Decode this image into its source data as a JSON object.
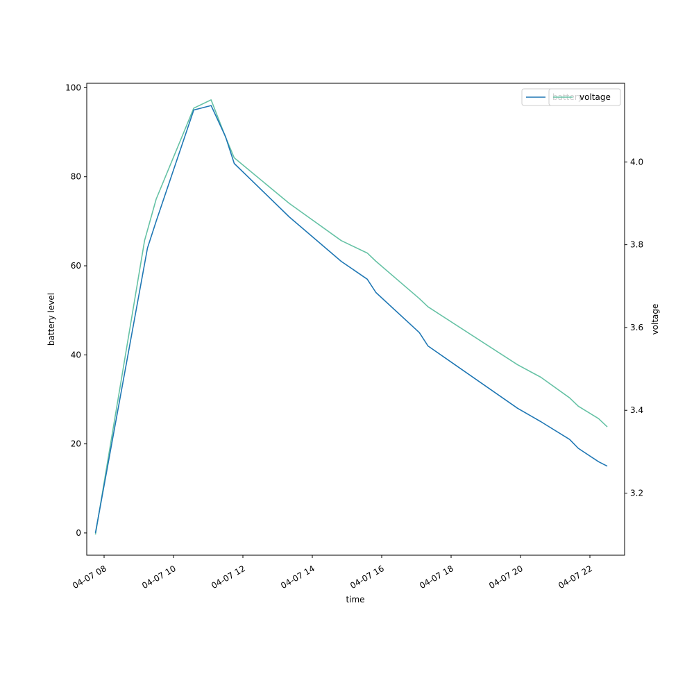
{
  "chart_data": {
    "type": "line",
    "title": "",
    "xlabel": "time",
    "ylabel_left": "battery level",
    "ylabel_right": "voltage",
    "x_ticks": [
      "04-07 08",
      "04-07 10",
      "04-07 12",
      "04-07 14",
      "04-07 16",
      "04-07 18",
      "04-07 20",
      "04-07 22"
    ],
    "xlim": [
      "04-07 07:30",
      "04-07 23:00"
    ],
    "ylim_left": [
      -5,
      101
    ],
    "yticks_left": [
      0,
      20,
      40,
      60,
      80,
      100
    ],
    "ylim_right": [
      3.05,
      4.19
    ],
    "yticks_right": [
      3.2,
      3.4,
      3.6,
      3.8,
      4.0
    ],
    "legend_placement": "top-right",
    "grid": false,
    "colors": {
      "battery": "#1f77b4",
      "voltage": "#66c2a5"
    },
    "legend": [
      {
        "name": "battery"
      },
      {
        "name": "voltage"
      }
    ],
    "series": [
      {
        "name": "battery",
        "axis": "left",
        "x": [
          "04-07 07:45",
          "04-07 09:15",
          "04-07 09:30",
          "04-07 10:35",
          "04-07 11:05",
          "04-07 11:30",
          "04-07 11:45",
          "04-07 13:20",
          "04-07 14:50",
          "04-07 15:35",
          "04-07 15:50",
          "04-07 17:05",
          "04-07 17:20",
          "04-07 19:55",
          "04-07 20:35",
          "04-07 21:25",
          "04-07 21:40",
          "04-07 22:15",
          "04-07 22:30"
        ],
        "values": [
          0,
          64,
          70,
          95,
          96,
          89,
          83,
          71,
          61,
          57,
          54,
          45,
          42,
          28,
          25,
          21,
          19,
          16,
          15
        ]
      },
      {
        "name": "voltage",
        "axis": "right",
        "x": [
          "04-07 07:45",
          "04-07 09:10",
          "04-07 09:30",
          "04-07 10:35",
          "04-07 11:05",
          "04-07 11:30",
          "04-07 11:45",
          "04-07 13:20",
          "04-07 14:50",
          "04-07 15:35",
          "04-07 15:50",
          "04-07 17:05",
          "04-07 17:20",
          "04-07 19:55",
          "04-07 20:35",
          "04-07 21:25",
          "04-07 21:40",
          "04-07 22:15",
          "04-07 22:30"
        ],
        "values": [
          3.1,
          3.81,
          3.91,
          4.13,
          4.15,
          4.06,
          4.01,
          3.9,
          3.81,
          3.78,
          3.76,
          3.67,
          3.65,
          3.51,
          3.48,
          3.43,
          3.41,
          3.38,
          3.36
        ]
      }
    ]
  }
}
